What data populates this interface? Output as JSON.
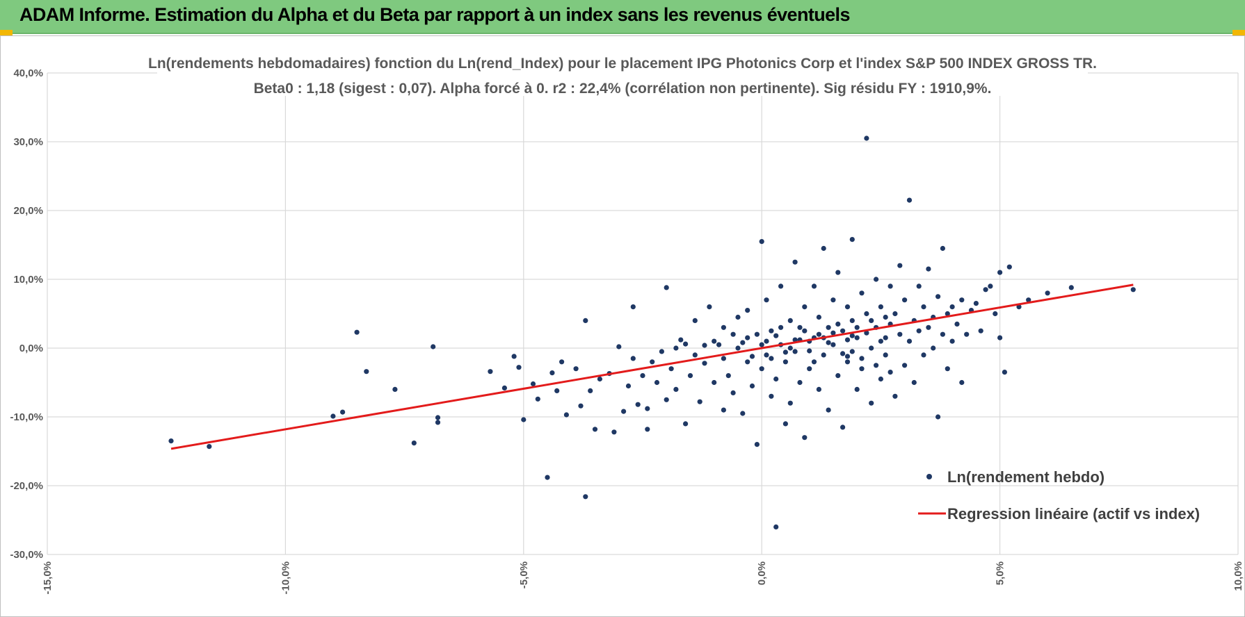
{
  "banner": {
    "title": "ADAM Informe. Estimation du Alpha et du Beta par rapport à un index sans les revenus éventuels"
  },
  "colors": {
    "banner_bg": "#7fc97f",
    "corner_accent": "#f2b705",
    "scatter": "#1f3864",
    "regression": "#e31b1b",
    "grid": "#d9d9d9",
    "text": "#595959"
  },
  "chart_data": {
    "type": "scatter",
    "title_lines": [
      "Ln(rendements hebdomadaires) fonction du Ln(rend_Index) pour le placement IPG Photonics Corp et l'index S&P 500 INDEX GROSS TR.",
      "Beta0 : 1,18 (sigest : 0,07).  Alpha forcé à 0. r2 : 22,4% (corrélation non pertinente). Sig résidu FY : 1910,9%."
    ],
    "xlim": [
      -0.15,
      0.1
    ],
    "ylim": [
      -0.3,
      0.4
    ],
    "x_ticks": [
      -0.15,
      -0.1,
      -0.05,
      0.0,
      0.05,
      0.1
    ],
    "x_tick_labels": [
      "-15,0%",
      "-10,0%",
      "-5,0%",
      "0,0%",
      "5,0%",
      "10,0%"
    ],
    "y_ticks": [
      -0.3,
      -0.2,
      -0.1,
      0.0,
      0.1,
      0.2,
      0.3,
      0.4
    ],
    "y_tick_labels": [
      "-30,0%",
      "-20,0%",
      "-10,0%",
      "0,0%",
      "10,0%",
      "20,0%",
      "30,0%",
      "40,0%"
    ],
    "grid": true,
    "legend_position": "bottom-right",
    "legend": [
      {
        "label": "Ln(rendement hebdo)",
        "kind": "marker"
      },
      {
        "label": "Regression linéaire (actif vs index)",
        "kind": "line"
      }
    ],
    "regression": {
      "slope": 1.18,
      "intercept": 0,
      "x_range": [
        -0.124,
        0.078
      ]
    },
    "scatter_points": [
      [
        -0.124,
        -0.135
      ],
      [
        -0.116,
        -0.143
      ],
      [
        -0.085,
        0.023
      ],
      [
        -0.083,
        -0.034
      ],
      [
        -0.088,
        -0.093
      ],
      [
        -0.09,
        -0.099
      ],
      [
        -0.077,
        -0.06
      ],
      [
        -0.069,
        0.002
      ],
      [
        -0.073,
        -0.138
      ],
      [
        -0.068,
        -0.101
      ],
      [
        -0.068,
        -0.108
      ],
      [
        -0.057,
        -0.034
      ],
      [
        -0.054,
        -0.058
      ],
      [
        -0.052,
        -0.012
      ],
      [
        -0.051,
        -0.028
      ],
      [
        -0.05,
        -0.104
      ],
      [
        -0.048,
        -0.052
      ],
      [
        -0.047,
        -0.074
      ],
      [
        -0.045,
        -0.188
      ],
      [
        -0.044,
        -0.036
      ],
      [
        -0.043,
        -0.062
      ],
      [
        -0.042,
        -0.02
      ],
      [
        -0.041,
        -0.097
      ],
      [
        -0.039,
        -0.03
      ],
      [
        -0.038,
        -0.084
      ],
      [
        -0.037,
        0.04
      ],
      [
        -0.037,
        -0.216
      ],
      [
        -0.036,
        -0.062
      ],
      [
        -0.035,
        -0.118
      ],
      [
        -0.034,
        -0.045
      ],
      [
        -0.032,
        -0.037
      ],
      [
        -0.031,
        -0.122
      ],
      [
        -0.03,
        0.002
      ],
      [
        -0.029,
        -0.092
      ],
      [
        -0.028,
        -0.055
      ],
      [
        -0.027,
        -0.015
      ],
      [
        -0.027,
        0.06
      ],
      [
        -0.026,
        -0.082
      ],
      [
        -0.025,
        -0.04
      ],
      [
        -0.024,
        -0.088
      ],
      [
        -0.024,
        -0.118
      ],
      [
        -0.023,
        -0.02
      ],
      [
        -0.022,
        -0.05
      ],
      [
        -0.021,
        -0.005
      ],
      [
        -0.02,
        -0.075
      ],
      [
        -0.02,
        0.088
      ],
      [
        -0.019,
        -0.03
      ],
      [
        -0.018,
        -0.06
      ],
      [
        -0.017,
        0.012
      ],
      [
        -0.016,
        -0.11
      ],
      [
        -0.015,
        -0.04
      ],
      [
        -0.014,
        0.04
      ],
      [
        -0.013,
        -0.078
      ],
      [
        -0.012,
        -0.022
      ],
      [
        -0.011,
        0.06
      ],
      [
        -0.01,
        -0.05
      ],
      [
        -0.009,
        0.005
      ],
      [
        -0.008,
        -0.09
      ],
      [
        -0.008,
        0.03
      ],
      [
        -0.007,
        -0.04
      ],
      [
        -0.006,
        -0.065
      ],
      [
        -0.005,
        0.0
      ],
      [
        -0.005,
        0.045
      ],
      [
        -0.004,
        -0.095
      ],
      [
        -0.003,
        -0.02
      ],
      [
        -0.003,
        0.055
      ],
      [
        -0.002,
        -0.055
      ],
      [
        -0.001,
        0.02
      ],
      [
        -0.001,
        -0.14
      ],
      [
        0.0,
        -0.03
      ],
      [
        0.0,
        0.155
      ],
      [
        0.001,
        -0.01
      ],
      [
        0.001,
        0.07
      ],
      [
        0.002,
        -0.07
      ],
      [
        0.002,
        0.025
      ],
      [
        0.003,
        -0.26
      ],
      [
        0.003,
        -0.045
      ],
      [
        0.004,
        0.005
      ],
      [
        0.004,
        0.09
      ],
      [
        0.005,
        -0.11
      ],
      [
        0.005,
        -0.02
      ],
      [
        0.006,
        0.04
      ],
      [
        0.006,
        -0.08
      ],
      [
        0.007,
        0.125
      ],
      [
        0.007,
        -0.005
      ],
      [
        0.008,
        0.03
      ],
      [
        0.008,
        -0.05
      ],
      [
        0.009,
        0.06
      ],
      [
        0.009,
        -0.13
      ],
      [
        0.01,
        0.01
      ],
      [
        0.01,
        -0.03
      ],
      [
        0.011,
        0.09
      ],
      [
        0.011,
        0.015
      ],
      [
        0.012,
        -0.06
      ],
      [
        0.012,
        0.045
      ],
      [
        0.013,
        0.145
      ],
      [
        0.013,
        -0.01
      ],
      [
        0.014,
        0.03
      ],
      [
        0.014,
        -0.09
      ],
      [
        0.015,
        0.07
      ],
      [
        0.015,
        0.005
      ],
      [
        0.016,
        -0.04
      ],
      [
        0.016,
        0.11
      ],
      [
        0.017,
        0.025
      ],
      [
        0.017,
        -0.115
      ],
      [
        0.018,
        0.06
      ],
      [
        0.018,
        -0.02
      ],
      [
        0.019,
        0.04
      ],
      [
        0.019,
        0.158
      ],
      [
        0.02,
        -0.06
      ],
      [
        0.02,
        0.015
      ],
      [
        0.021,
        0.08
      ],
      [
        0.021,
        -0.03
      ],
      [
        0.022,
        0.05
      ],
      [
        0.022,
        0.305
      ],
      [
        0.023,
        0.0
      ],
      [
        0.023,
        -0.08
      ],
      [
        0.024,
        0.03
      ],
      [
        0.024,
        0.1
      ],
      [
        0.025,
        -0.045
      ],
      [
        0.025,
        0.06
      ],
      [
        0.026,
        0.015
      ],
      [
        0.026,
        -0.01
      ],
      [
        0.027,
        0.09
      ],
      [
        0.027,
        0.035
      ],
      [
        0.028,
        -0.07
      ],
      [
        0.028,
        0.05
      ],
      [
        0.029,
        0.02
      ],
      [
        0.029,
        0.12
      ],
      [
        0.03,
        -0.025
      ],
      [
        0.03,
        0.07
      ],
      [
        0.031,
        0.01
      ],
      [
        0.031,
        0.215
      ],
      [
        0.032,
        0.04
      ],
      [
        0.032,
        -0.05
      ],
      [
        0.033,
        0.09
      ],
      [
        0.033,
        0.025
      ],
      [
        0.034,
        -0.01
      ],
      [
        0.034,
        0.06
      ],
      [
        0.035,
        0.03
      ],
      [
        0.035,
        0.115
      ],
      [
        0.036,
        0.0
      ],
      [
        0.036,
        0.045
      ],
      [
        0.037,
        -0.1
      ],
      [
        0.037,
        0.075
      ],
      [
        0.038,
        0.02
      ],
      [
        0.038,
        0.145
      ],
      [
        0.039,
        0.05
      ],
      [
        0.039,
        -0.03
      ],
      [
        0.04,
        0.01
      ],
      [
        0.04,
        0.06
      ],
      [
        0.041,
        0.035
      ],
      [
        0.042,
        0.07
      ],
      [
        0.042,
        -0.05
      ],
      [
        0.043,
        0.02
      ],
      [
        0.044,
        0.055
      ],
      [
        0.045,
        0.065
      ],
      [
        0.046,
        0.025
      ],
      [
        0.047,
        0.085
      ],
      [
        0.048,
        0.09
      ],
      [
        0.049,
        0.05
      ],
      [
        0.05,
        0.015
      ],
      [
        0.05,
        0.11
      ],
      [
        0.051,
        -0.035
      ],
      [
        0.052,
        0.118
      ],
      [
        0.054,
        0.06
      ],
      [
        0.056,
        0.07
      ],
      [
        0.06,
        0.08
      ],
      [
        0.065,
        0.088
      ],
      [
        0.078,
        0.085
      ],
      [
        0.018,
        0.012
      ],
      [
        0.019,
        -0.005
      ],
      [
        0.02,
        0.03
      ],
      [
        0.021,
        -0.015
      ],
      [
        0.022,
        0.022
      ],
      [
        0.023,
        0.04
      ],
      [
        0.024,
        -0.025
      ],
      [
        0.025,
        0.01
      ],
      [
        0.026,
        0.045
      ],
      [
        0.027,
        -0.035
      ],
      [
        0.0,
        0.005
      ],
      [
        0.001,
        0.01
      ],
      [
        -0.002,
        -0.012
      ],
      [
        0.003,
        0.018
      ],
      [
        -0.004,
        0.008
      ],
      [
        0.005,
        -0.006
      ],
      [
        -0.006,
        0.02
      ],
      [
        0.007,
        0.012
      ],
      [
        -0.008,
        -0.015
      ],
      [
        0.009,
        0.025
      ],
      [
        -0.01,
        0.01
      ],
      [
        0.011,
        -0.02
      ],
      [
        -0.012,
        0.004
      ],
      [
        0.013,
        0.015
      ],
      [
        -0.014,
        -0.01
      ],
      [
        0.015,
        0.022
      ],
      [
        -0.016,
        0.006
      ],
      [
        0.017,
        -0.008
      ],
      [
        -0.018,
        0.0
      ],
      [
        0.019,
        0.018
      ],
      [
        0.006,
        0.0
      ],
      [
        0.008,
        0.012
      ],
      [
        0.01,
        -0.004
      ],
      [
        0.012,
        0.02
      ],
      [
        0.014,
        0.008
      ],
      [
        0.016,
        0.035
      ],
      [
        0.018,
        -0.012
      ],
      [
        0.004,
        0.03
      ],
      [
        0.002,
        -0.015
      ],
      [
        -0.003,
        0.015
      ]
    ]
  }
}
